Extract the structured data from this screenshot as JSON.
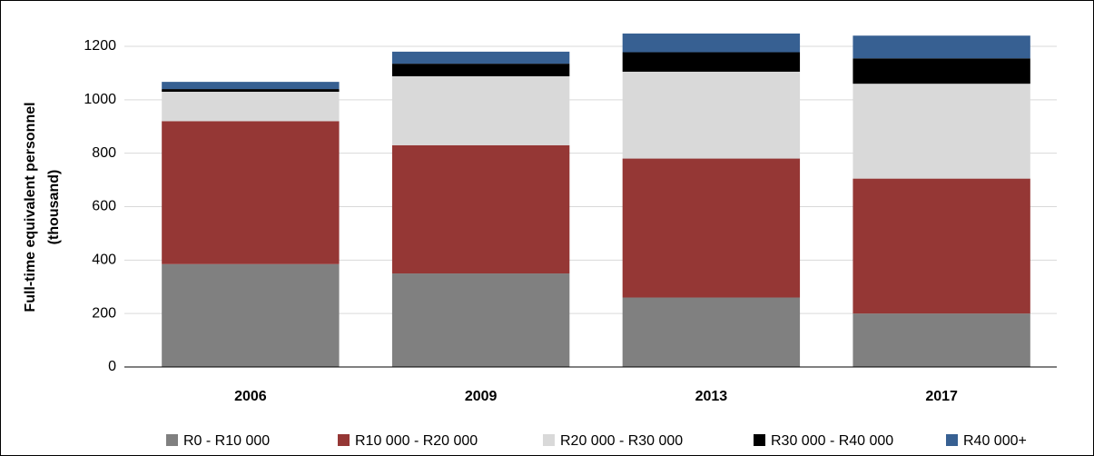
{
  "chart_data": {
    "type": "stacked-bar",
    "y_label": [
      "Full-time equivalent  personnel",
      "(thousand)"
    ],
    "categories": [
      "2006",
      "2009",
      "2013",
      "2017"
    ],
    "series": [
      {
        "name": "R0 - R10 000",
        "color": "#808080",
        "values": [
          385,
          350,
          260,
          200
        ]
      },
      {
        "name": "R10 000 - R20 000",
        "color": "#953735",
        "values": [
          535,
          480,
          520,
          505
        ]
      },
      {
        "name": "R20 000 - R30 000",
        "color": "#d9d9d9",
        "values": [
          110,
          258,
          325,
          355
        ]
      },
      {
        "name": "R30 000 - R40 000",
        "color": "#000000",
        "values": [
          10,
          47,
          73,
          95
        ]
      },
      {
        "name": "R40 000+",
        "color": "#376092",
        "values": [
          27,
          45,
          70,
          85
        ]
      }
    ],
    "ylim": [
      0,
      1200
    ],
    "yticks": [
      0,
      200,
      400,
      600,
      800,
      1000,
      1200
    ],
    "grid": true,
    "legend": "bottom"
  }
}
